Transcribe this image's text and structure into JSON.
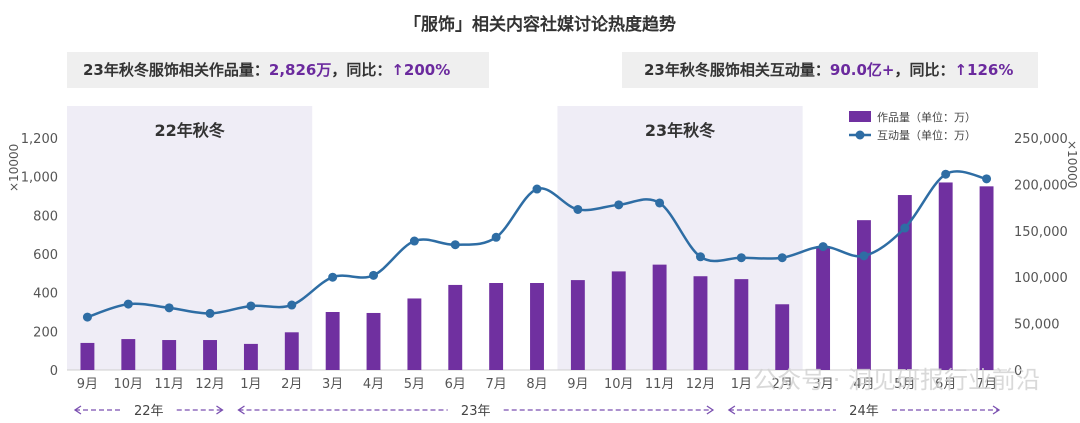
{
  "title": "「服饰」相关内容社媒讨论热度趋势",
  "stats": {
    "left_label": "23年秋冬服饰相关作品量：",
    "left_value": "2,826万",
    "left_yoy_label": "，同比：",
    "left_yoy_value": "↑200%",
    "right_label": "23年秋冬服饰相关互动量：",
    "right_value": "90.0亿+",
    "right_yoy_label": "，同比：",
    "right_yoy_value": "↑126%"
  },
  "periods": [
    {
      "label": "22年秋冬",
      "from": "9月",
      "to": "2月"
    },
    {
      "label": "23年秋冬",
      "from": "9月",
      "to": "2月"
    }
  ],
  "year_groups": [
    "22年",
    "23年",
    "24年"
  ],
  "watermark": "公众号 · 洞见研报行业前沿",
  "colors": {
    "bar": "#7030a0",
    "line": "#2e6da4",
    "shade": "#efedf6",
    "arrow": "#7a4fb0"
  },
  "chart_data": {
    "type": "bar",
    "categories": [
      "9月",
      "10月",
      "11月",
      "12月",
      "1月",
      "2月",
      "3月",
      "4月",
      "5月",
      "6月",
      "7月",
      "8月",
      "9月",
      "10月",
      "11月",
      "12月",
      "1月",
      "2月",
      "3月",
      "4月",
      "5月",
      "6月",
      "7月"
    ],
    "series": [
      {
        "name": "作品量（单位：万）",
        "type": "bar",
        "axis": "left",
        "values": [
          140,
          160,
          155,
          155,
          135,
          195,
          300,
          295,
          370,
          440,
          450,
          450,
          465,
          510,
          545,
          485,
          470,
          340,
          640,
          775,
          905,
          970,
          950
        ]
      },
      {
        "name": "互动量（单位：万）",
        "type": "line",
        "axis": "right",
        "values": [
          57000,
          71000,
          67000,
          61000,
          69000,
          70000,
          100000,
          102000,
          139000,
          135000,
          143000,
          195000,
          173000,
          178000,
          180000,
          122000,
          121000,
          121000,
          133000,
          123000,
          153000,
          211000,
          206000
        ]
      }
    ],
    "y_left": {
      "min": 0,
      "max": 1200,
      "ticks": [
        0,
        200,
        400,
        600,
        800,
        "1,000",
        "1,200"
      ],
      "multiplier": "×10000"
    },
    "y_right": {
      "min": 0,
      "max": 250000,
      "ticks": [
        0,
        "50,000",
        "100,000",
        "150,000",
        "200,000",
        "250,000"
      ],
      "multiplier": "×10000"
    },
    "legend_position": "top-right"
  }
}
